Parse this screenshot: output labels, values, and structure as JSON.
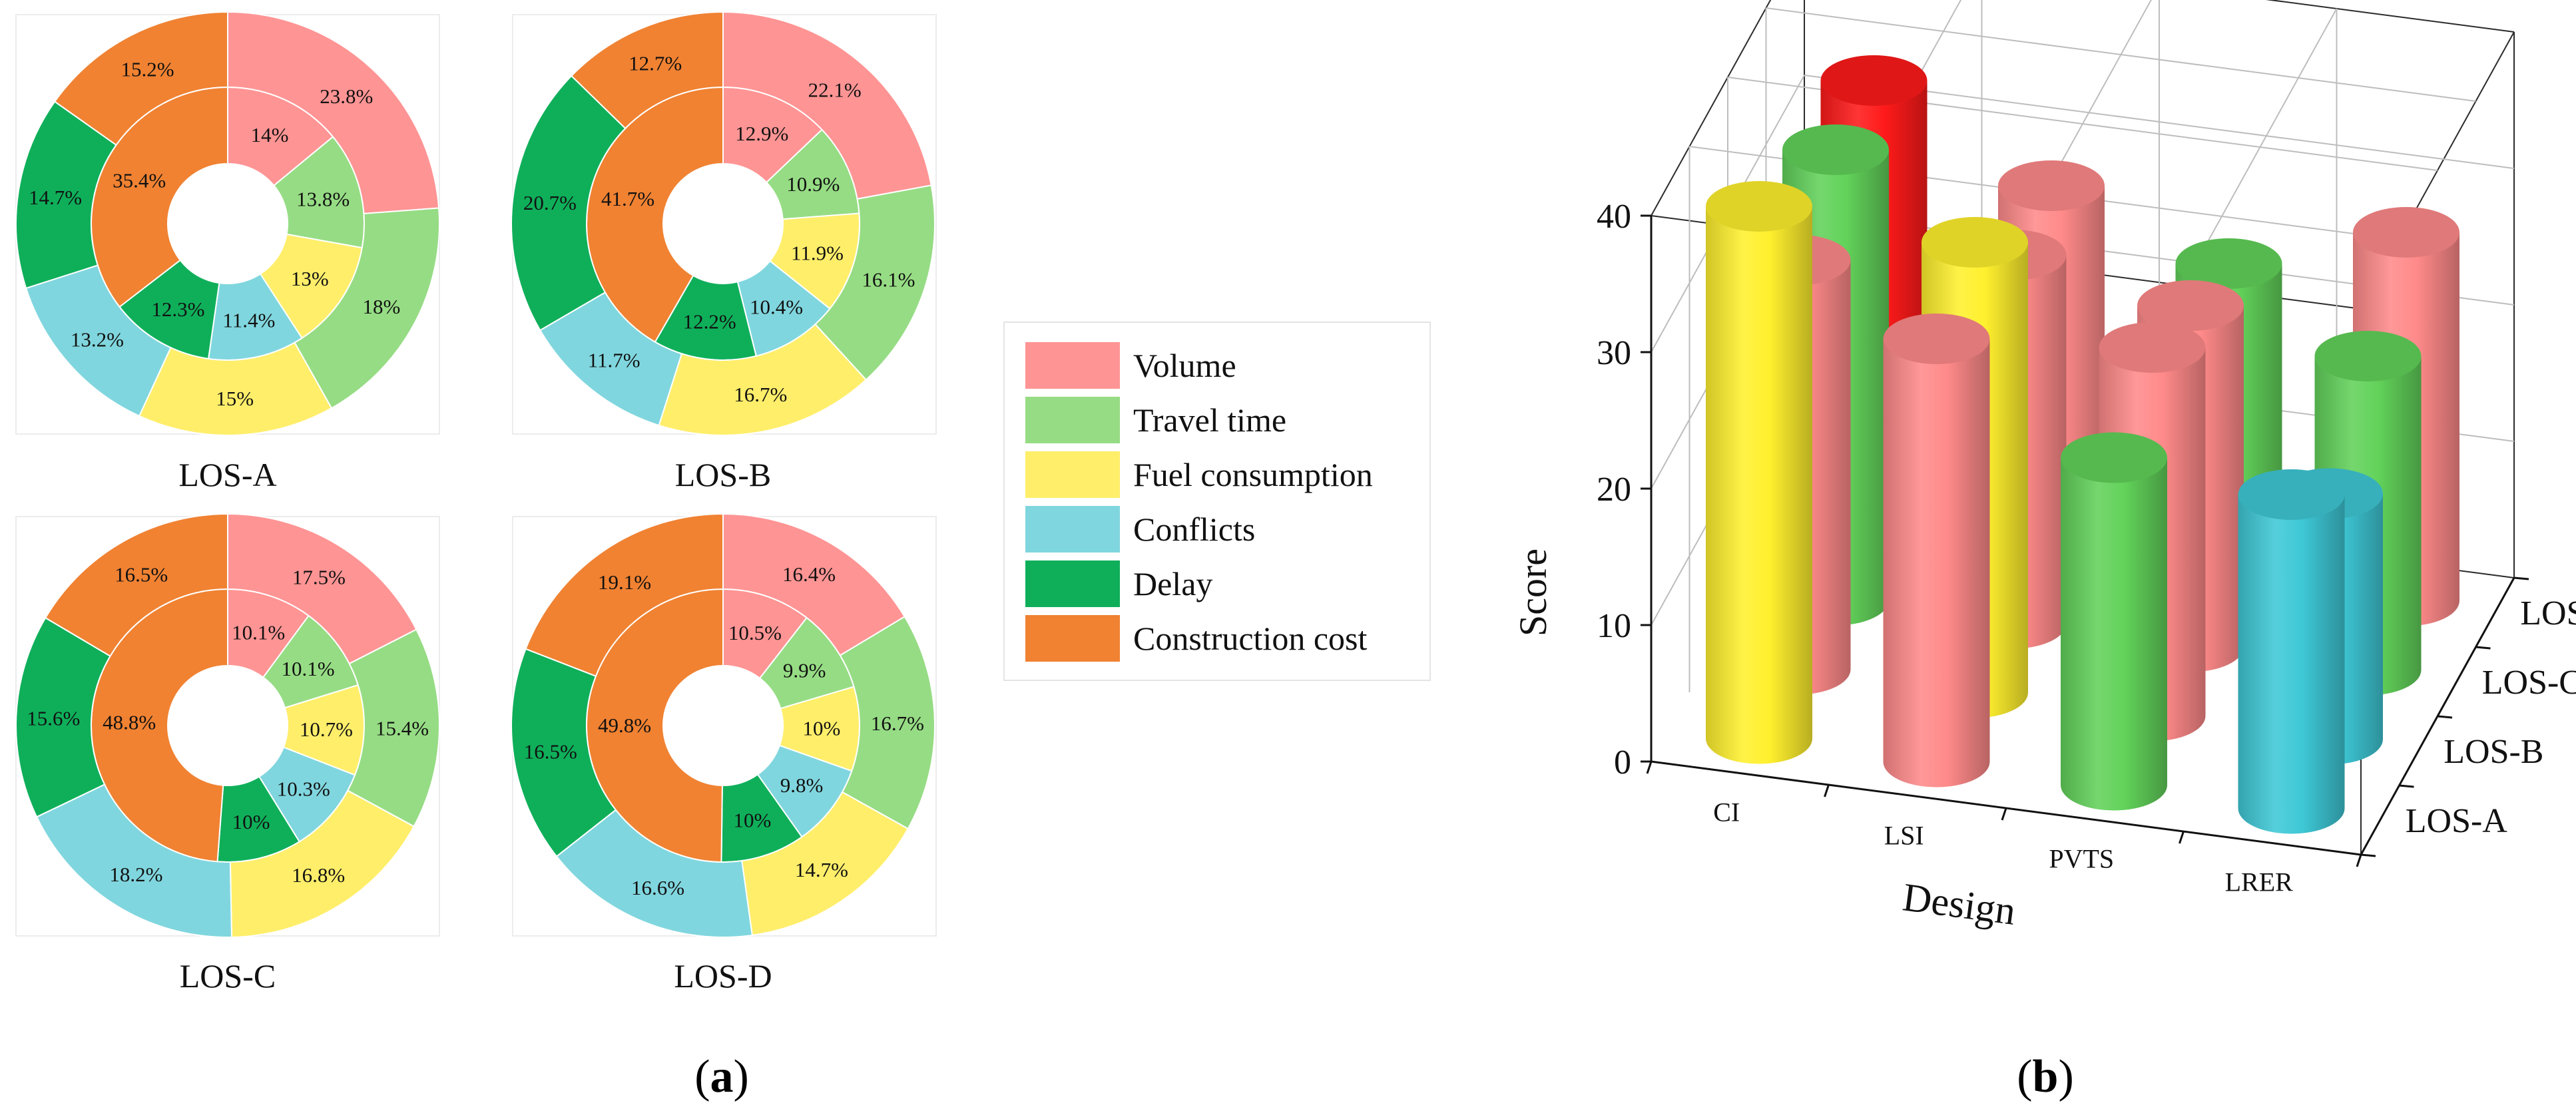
{
  "legend": [
    {
      "label": "Volume",
      "color": "#FF9494"
    },
    {
      "label": "Travel time",
      "color": "#96DC84"
    },
    {
      "label": "Fuel consumption",
      "color": "#FFEE6A"
    },
    {
      "label": "Conflicts",
      "color": "#80D6DE"
    },
    {
      "label": "Delay",
      "color": "#0FAF5A"
    },
    {
      "label": "Construction cost",
      "color": "#F08232"
    }
  ],
  "panel_labels": {
    "a": "a",
    "b": "b"
  },
  "chart_data": [
    {
      "type": "pie",
      "variant": "nested-donut",
      "title": "LOS-A",
      "categories": [
        "Volume",
        "Travel time",
        "Fuel consumption",
        "Conflicts",
        "Delay",
        "Construction cost"
      ],
      "series": [
        {
          "name": "inner",
          "values": [
            14,
            13.8,
            13,
            11.4,
            12.3,
            35.4
          ],
          "labels": [
            "14%",
            "13.8%",
            "13%",
            "11.4%",
            "12.3%",
            "35.4%"
          ]
        },
        {
          "name": "outer",
          "values": [
            23.8,
            18,
            15,
            13.2,
            14.7,
            15.2
          ],
          "labels": [
            "23.8%",
            "18%",
            "15%",
            "13.2%",
            "14.7%",
            "15.2%"
          ]
        }
      ]
    },
    {
      "type": "pie",
      "variant": "nested-donut",
      "title": "LOS-B",
      "categories": [
        "Volume",
        "Travel time",
        "Fuel consumption",
        "Conflicts",
        "Delay",
        "Construction cost"
      ],
      "series": [
        {
          "name": "inner",
          "values": [
            12.9,
            10.9,
            11.9,
            10.4,
            12.2,
            41.7
          ],
          "labels": [
            "12.9%",
            "10.9%",
            "11.9%",
            "10.4%",
            "12.2%",
            "41.7%"
          ]
        },
        {
          "name": "outer",
          "values": [
            22.1,
            16.1,
            16.7,
            11.7,
            20.7,
            12.7
          ],
          "labels": [
            "22.1%",
            "16.1%",
            "16.7%",
            "11.7%",
            "20.7%",
            "12.7%"
          ]
        }
      ]
    },
    {
      "type": "pie",
      "variant": "nested-donut",
      "title": "LOS-C",
      "categories": [
        "Volume",
        "Travel time",
        "Fuel consumption",
        "Conflicts",
        "Delay",
        "Construction cost"
      ],
      "series": [
        {
          "name": "inner",
          "values": [
            10.1,
            10.1,
            10.7,
            10.3,
            10,
            48.8
          ],
          "labels": [
            "10.1%",
            "10.1%",
            "10.7%",
            "10.3%",
            "10%",
            "48.8%"
          ]
        },
        {
          "name": "outer",
          "values": [
            17.5,
            15.4,
            16.8,
            18.2,
            15.6,
            16.5
          ],
          "labels": [
            "17.5%",
            "15.4%",
            "16.8%",
            "18.2%",
            "15.6%",
            "16.5%"
          ]
        }
      ]
    },
    {
      "type": "pie",
      "variant": "nested-donut",
      "title": "LOS-D",
      "categories": [
        "Volume",
        "Travel time",
        "Fuel consumption",
        "Conflicts",
        "Delay",
        "Construction cost"
      ],
      "series": [
        {
          "name": "inner",
          "values": [
            10.5,
            9.9,
            10,
            9.8,
            10,
            49.8
          ],
          "labels": [
            "10.5%",
            "9.9%",
            "10%",
            "9.8%",
            "10%",
            "49.8%"
          ]
        },
        {
          "name": "outer",
          "values": [
            16.4,
            16.7,
            14.7,
            16.6,
            16.5,
            19.1
          ],
          "labels": [
            "16.4%",
            "16.7%",
            "14.7%",
            "16.6%",
            "16.5%",
            "19.1%"
          ]
        }
      ]
    },
    {
      "type": "bar",
      "variant": "3d-cylinder",
      "xlabel": "Design",
      "ylabel": "Score",
      "categories": [
        "CI",
        "LSI",
        "PVTS",
        "LRER"
      ],
      "depth_categories": [
        "LOS-A",
        "LOS-B",
        "LOS-C",
        "LOS-D"
      ],
      "ylim": [
        0,
        40
      ],
      "yticks": [
        "0",
        "10",
        "20",
        "30",
        "40"
      ],
      "bars": [
        {
          "x": "CI",
          "depth": "LOS-A",
          "value": 39,
          "color": "#FFF02E"
        },
        {
          "x": "CI",
          "depth": "LOS-B",
          "value": 30,
          "color": "#FF8A8A"
        },
        {
          "x": "CI",
          "depth": "LOS-C",
          "value": 33,
          "color": "#62D25A"
        },
        {
          "x": "CI",
          "depth": "LOS-D",
          "value": 33,
          "color": "#FF1A1A"
        },
        {
          "x": "LSI",
          "depth": "LOS-A",
          "value": 31,
          "color": "#FF8A8A"
        },
        {
          "x": "LSI",
          "depth": "LOS-B",
          "value": 33,
          "color": "#FFF02E"
        },
        {
          "x": "LSI",
          "depth": "LOS-C",
          "value": 27,
          "color": "#FF8A8A"
        },
        {
          "x": "LSI",
          "depth": "LOS-D",
          "value": 27,
          "color": "#FF8A8A"
        },
        {
          "x": "PVTS",
          "depth": "LOS-A",
          "value": 24,
          "color": "#62D25A"
        },
        {
          "x": "PVTS",
          "depth": "LOS-B",
          "value": 27,
          "color": "#FF8A8A"
        },
        {
          "x": "PVTS",
          "depth": "LOS-C",
          "value": 25,
          "color": "#FF8A8A"
        },
        {
          "x": "PVTS",
          "depth": "LOS-D",
          "value": 23,
          "color": "#62D25A"
        },
        {
          "x": "LRER",
          "depth": "LOS-A",
          "value": 23,
          "color": "#3EC8D6"
        },
        {
          "x": "LRER",
          "depth": "LOS-B",
          "value": 18,
          "color": "#3EC8D6"
        },
        {
          "x": "LRER",
          "depth": "LOS-C",
          "value": 23,
          "color": "#62D25A"
        },
        {
          "x": "LRER",
          "depth": "LOS-D",
          "value": 27,
          "color": "#FF8A8A"
        }
      ]
    }
  ]
}
